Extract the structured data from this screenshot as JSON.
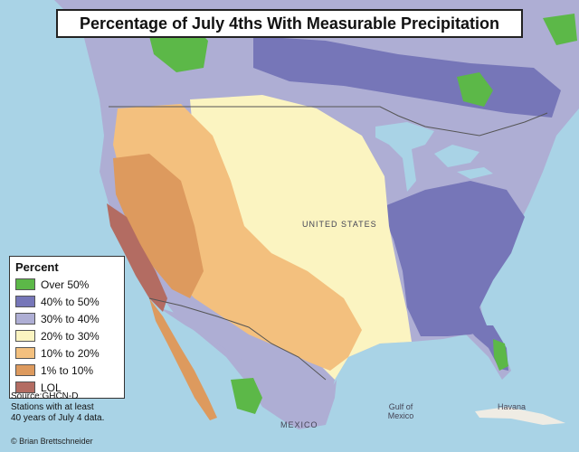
{
  "title": "Percentage of July 4ths With Measurable Precipitation",
  "legend": {
    "title": "Percent",
    "items": [
      {
        "label": "Over 50%",
        "color": "#5cb848"
      },
      {
        "label": "40% to 50%",
        "color": "#7676b8"
      },
      {
        "label": "30% to 40%",
        "color": "#aeaed4"
      },
      {
        "label": "20% to 30%",
        "color": "#fbf4c1"
      },
      {
        "label": "10% to 20%",
        "color": "#f3c07e"
      },
      {
        "label": "1% to 10%",
        "color": "#dd9a5e"
      },
      {
        "label": "LOL",
        "color": "#b36c62"
      }
    ]
  },
  "source": {
    "line1": "Source:GHCN-D",
    "line2": "Stations with at least",
    "line3": "40 years of July 4 data."
  },
  "credit": "© Brian Brettschneider",
  "places": {
    "gulf": "Gulf of Mexico",
    "havana": "Havana",
    "mexico": "MEXICO",
    "us": "UNITED STATES"
  }
}
